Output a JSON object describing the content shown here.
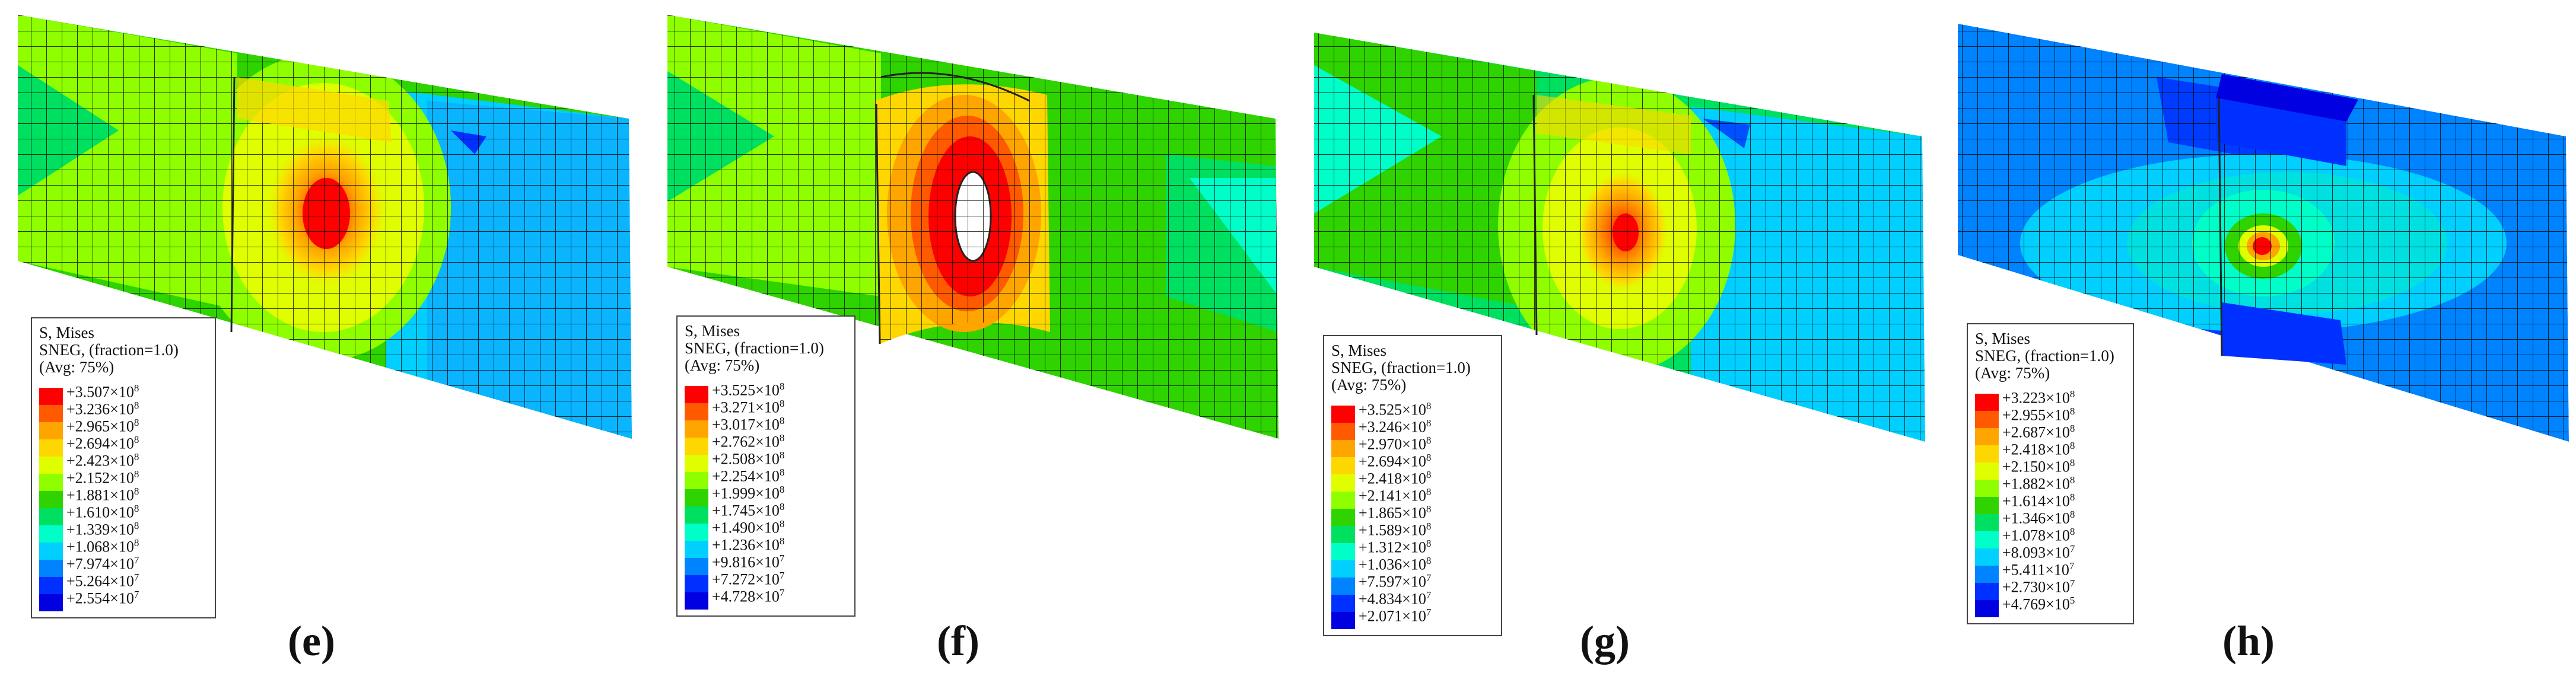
{
  "palette": [
    "#ff0000",
    "#ff5a00",
    "#ffa500",
    "#ffd700",
    "#dfff00",
    "#8fff00",
    "#2ed300",
    "#00e060",
    "#00ffc8",
    "#00cfff",
    "#0083ff",
    "#0030ff",
    "#0000e0"
  ],
  "panels": [
    {
      "caption": "(e)",
      "legend": {
        "title": "S, Mises",
        "subtitle": "SNEG, (fraction=1.0)",
        "avg": "(Avg: 75%)",
        "mantissas": [
          "+3.507",
          "+3.236",
          "+2.965",
          "+2.694",
          "+2.423",
          "+2.152",
          "+1.881",
          "+1.610",
          "+1.339",
          "+1.068",
          "+7.974",
          "+5.264",
          "+2.554"
        ],
        "exponents": [
          "8",
          "8",
          "8",
          "8",
          "8",
          "8",
          "8",
          "8",
          "8",
          "8",
          "7",
          "7",
          "7"
        ]
      }
    },
    {
      "caption": "(f)",
      "legend": {
        "title": "S, Mises",
        "subtitle": "SNEG, (fraction=1.0)",
        "avg": "(Avg: 75%)",
        "mantissas": [
          "+3.525",
          "+3.271",
          "+3.017",
          "+2.762",
          "+2.508",
          "+2.254",
          "+1.999",
          "+1.745",
          "+1.490",
          "+1.236",
          "+9.816",
          "+7.272",
          "+4.728"
        ],
        "exponents": [
          "8",
          "8",
          "8",
          "8",
          "8",
          "8",
          "8",
          "8",
          "8",
          "8",
          "7",
          "7",
          "7"
        ]
      }
    },
    {
      "caption": "(g)",
      "legend": {
        "title": "S, Mises",
        "subtitle": "SNEG, (fraction=1.0)",
        "avg": "(Avg: 75%)",
        "mantissas": [
          "+3.525",
          "+3.246",
          "+2.970",
          "+2.694",
          "+2.418",
          "+2.141",
          "+1.865",
          "+1.589",
          "+1.312",
          "+1.036",
          "+7.597",
          "+4.834",
          "+2.071"
        ],
        "exponents": [
          "8",
          "8",
          "8",
          "8",
          "8",
          "8",
          "8",
          "8",
          "8",
          "8",
          "7",
          "7",
          "7"
        ]
      }
    },
    {
      "caption": "(h)",
      "legend": {
        "title": "S, Mises",
        "subtitle": "SNEG, (fraction=1.0)",
        "avg": "(Avg: 75%)",
        "mantissas": [
          "+3.223",
          "+2.955",
          "+2.687",
          "+2.418",
          "+2.150",
          "+1.882",
          "+1.614",
          "+1.346",
          "+1.078",
          "+8.093",
          "+5.411",
          "+2.730",
          "+4.769"
        ],
        "exponents": [
          "8",
          "8",
          "8",
          "8",
          "8",
          "8",
          "8",
          "8",
          "8",
          "7",
          "7",
          "7",
          "5"
        ]
      }
    }
  ]
}
